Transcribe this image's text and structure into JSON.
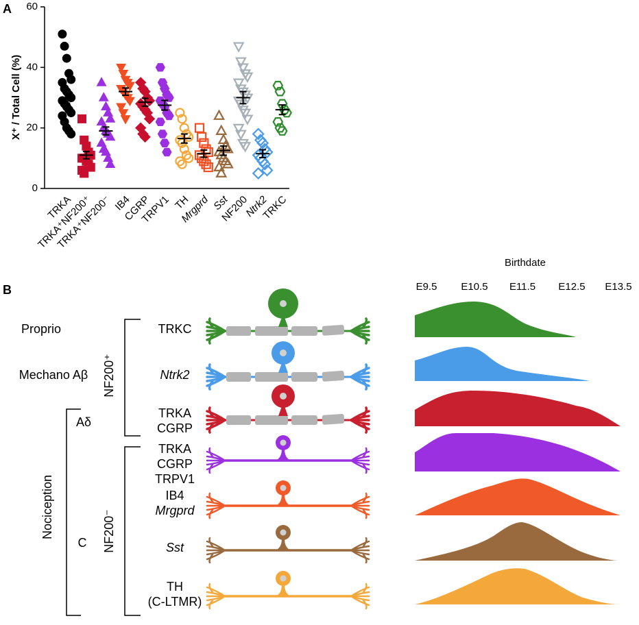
{
  "chart_data": {
    "type": "dotplot",
    "panel_label": "A",
    "y_label": "X⁺ / Total Cell (%)",
    "categories": [
      "TRKA",
      "TRKA⁺NF200⁺",
      "TRKA⁺NF200⁻",
      "IB4",
      "CGRP",
      "TRPV1",
      "TH",
      "Mrgprd",
      "Sst",
      "NF200",
      "Ntrk2",
      "TRKC"
    ],
    "category_italic": [
      false,
      false,
      false,
      false,
      false,
      false,
      false,
      true,
      true,
      false,
      true,
      false
    ],
    "colors": [
      "#000000",
      "#c8102e",
      "#9b30e0",
      "#f04e23",
      "#c8102e",
      "#9b30e0",
      "#f5a83a",
      "#f04e23",
      "#9a6a3f",
      "#a7b0b6",
      "#4a9be8",
      "#2e8b2e"
    ],
    "markers": [
      "circle",
      "square",
      "triangle-up",
      "triangle-down",
      "diamond",
      "hexagon",
      "circle",
      "square",
      "triangle-up",
      "triangle-down",
      "diamond",
      "hexagon"
    ],
    "filled": [
      true,
      true,
      true,
      true,
      true,
      true,
      false,
      false,
      false,
      false,
      false,
      false
    ],
    "values": [
      [
        51,
        47,
        43,
        38,
        36,
        35,
        33,
        32,
        31,
        30,
        29,
        28,
        27,
        26,
        25,
        24,
        22,
        20,
        19,
        18
      ],
      [
        23,
        16,
        14,
        12,
        11,
        10,
        10,
        9,
        8,
        7,
        6,
        5
      ],
      [
        35,
        30,
        27,
        25,
        23,
        22,
        20,
        19,
        18,
        17,
        15,
        13,
        12,
        10,
        8
      ],
      [
        40,
        38,
        36,
        35,
        34,
        33,
        32,
        31,
        30,
        29,
        27,
        25,
        23
      ],
      [
        35,
        33,
        32,
        30,
        29,
        28,
        27,
        26,
        25,
        23,
        20,
        18,
        17
      ],
      [
        40,
        35,
        33,
        31,
        30,
        29,
        28,
        27,
        25,
        24,
        22,
        18,
        15,
        12
      ],
      [
        25,
        23,
        20,
        18,
        17,
        16,
        15,
        13,
        11,
        10,
        9,
        8
      ],
      [
        20,
        17,
        15,
        13,
        12,
        11,
        10,
        9,
        8,
        7
      ],
      [
        24,
        19,
        16,
        14,
        13,
        12,
        11,
        10,
        9,
        8,
        7,
        5
      ],
      [
        47,
        42,
        40,
        38,
        37,
        35,
        33,
        32,
        31,
        30,
        29,
        28,
        26,
        25,
        23,
        20,
        18,
        15,
        14
      ],
      [
        18,
        16,
        15,
        13,
        12,
        11,
        10,
        9,
        8,
        6,
        5
      ],
      [
        34,
        32,
        28,
        26,
        25,
        22,
        20,
        19
      ]
    ],
    "means": [
      30,
      11,
      19,
      32,
      28.5,
      27.5,
      16.5,
      11.5,
      12.5,
      30,
      11.5,
      26
    ],
    "sems": [
      1.8,
      1.2,
      1.3,
      1.2,
      1.3,
      1.6,
      1.5,
      1.2,
      1.5,
      2,
      1.3,
      1.6
    ],
    "ylim": [
      0,
      60
    ],
    "yticks": [
      0,
      20,
      40,
      60
    ]
  },
  "panel_b": {
    "panel_label": "B",
    "birthdate_title": "Birthdate",
    "birthdate_ticks": [
      "E9.5",
      "E10.5",
      "E11.5",
      "E12.5",
      "E13.5"
    ],
    "groups": {
      "proprio": "Proprio",
      "mechano": "Mechano Aβ",
      "a_delta": "Aδ",
      "c": "C",
      "nociception": "Nociception",
      "nf200_pos": "NF200⁺",
      "nf200_neg": "NF200⁻"
    },
    "group_colors": {
      "proprio": "#2e8b2e",
      "mechano": "#4a9be8",
      "nociception": "#c8102e"
    },
    "rows": [
      {
        "lines": [
          {
            "text": "TRKC",
            "italic": false
          }
        ],
        "color": "#3a8f2e"
      },
      {
        "lines": [
          {
            "text": "Ntrk2",
            "italic": true
          }
        ],
        "color": "#4a9be8"
      },
      {
        "lines": [
          {
            "text": "TRKA",
            "italic": false
          },
          {
            "text": "CGRP",
            "italic": false
          }
        ],
        "color": "#c8202e"
      },
      {
        "lines": [
          {
            "text": "TRKA",
            "italic": false
          },
          {
            "text": "CGRP",
            "italic": false
          },
          {
            "text": "TRPV1",
            "italic": false
          }
        ],
        "color": "#9b30e0"
      },
      {
        "lines": [
          {
            "text": "IB4",
            "italic": false
          },
          {
            "text": "Mrgprd",
            "italic": true
          }
        ],
        "color": "#f05a28"
      },
      {
        "lines": [
          {
            "text": "Sst",
            "italic": true
          }
        ],
        "color": "#9a6a3f"
      },
      {
        "lines": [
          {
            "text": "TH",
            "italic": false
          },
          {
            "text": "(C-LTMR)",
            "italic": false
          }
        ],
        "color": "#f5a83a"
      }
    ]
  }
}
